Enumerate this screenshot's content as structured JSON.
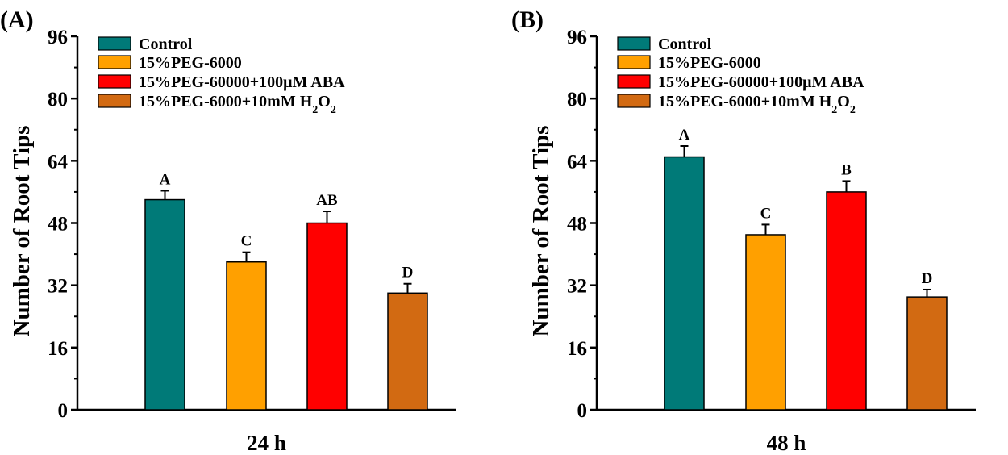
{
  "chart_data": [
    {
      "type": "bar",
      "panel_label": "(A)",
      "xlabel": "24 h",
      "ylabel": "Number of Root Tips",
      "ylim": [
        0,
        96
      ],
      "yticks": [
        0,
        16,
        32,
        48,
        64,
        80,
        96
      ],
      "legend_position": "top-left",
      "series": [
        {
          "name": "Control",
          "value": 54,
          "error": 2.3,
          "sig": "A"
        },
        {
          "name": "15%PEG-6000",
          "value": 38,
          "error": 2.5,
          "sig": "C"
        },
        {
          "name": "15%PEG-60000+100μM ABA",
          "value": 48,
          "error": 3.0,
          "sig": "AB"
        },
        {
          "name": "15%PEG-6000+10mM H2O2",
          "value": 30,
          "error": 2.4,
          "sig": "D"
        }
      ]
    },
    {
      "type": "bar",
      "panel_label": "(B)",
      "xlabel": "48 h",
      "ylabel": "Number of Root Tips",
      "ylim": [
        0,
        96
      ],
      "yticks": [
        0,
        16,
        32,
        48,
        64,
        80,
        96
      ],
      "legend_position": "top-left",
      "series": [
        {
          "name": "Control",
          "value": 65,
          "error": 2.8,
          "sig": "A"
        },
        {
          "name": "15%PEG-6000",
          "value": 45,
          "error": 2.6,
          "sig": "C"
        },
        {
          "name": "15%PEG-60000+100μM ABA",
          "value": 56,
          "error": 2.8,
          "sig": "B"
        },
        {
          "name": "15%PEG-6000+10mM H2O2",
          "value": 29,
          "error": 1.9,
          "sig": "D"
        }
      ]
    }
  ],
  "colors": [
    "#007a78",
    "#ffa000",
    "#ff0000",
    "#d26a12"
  ]
}
